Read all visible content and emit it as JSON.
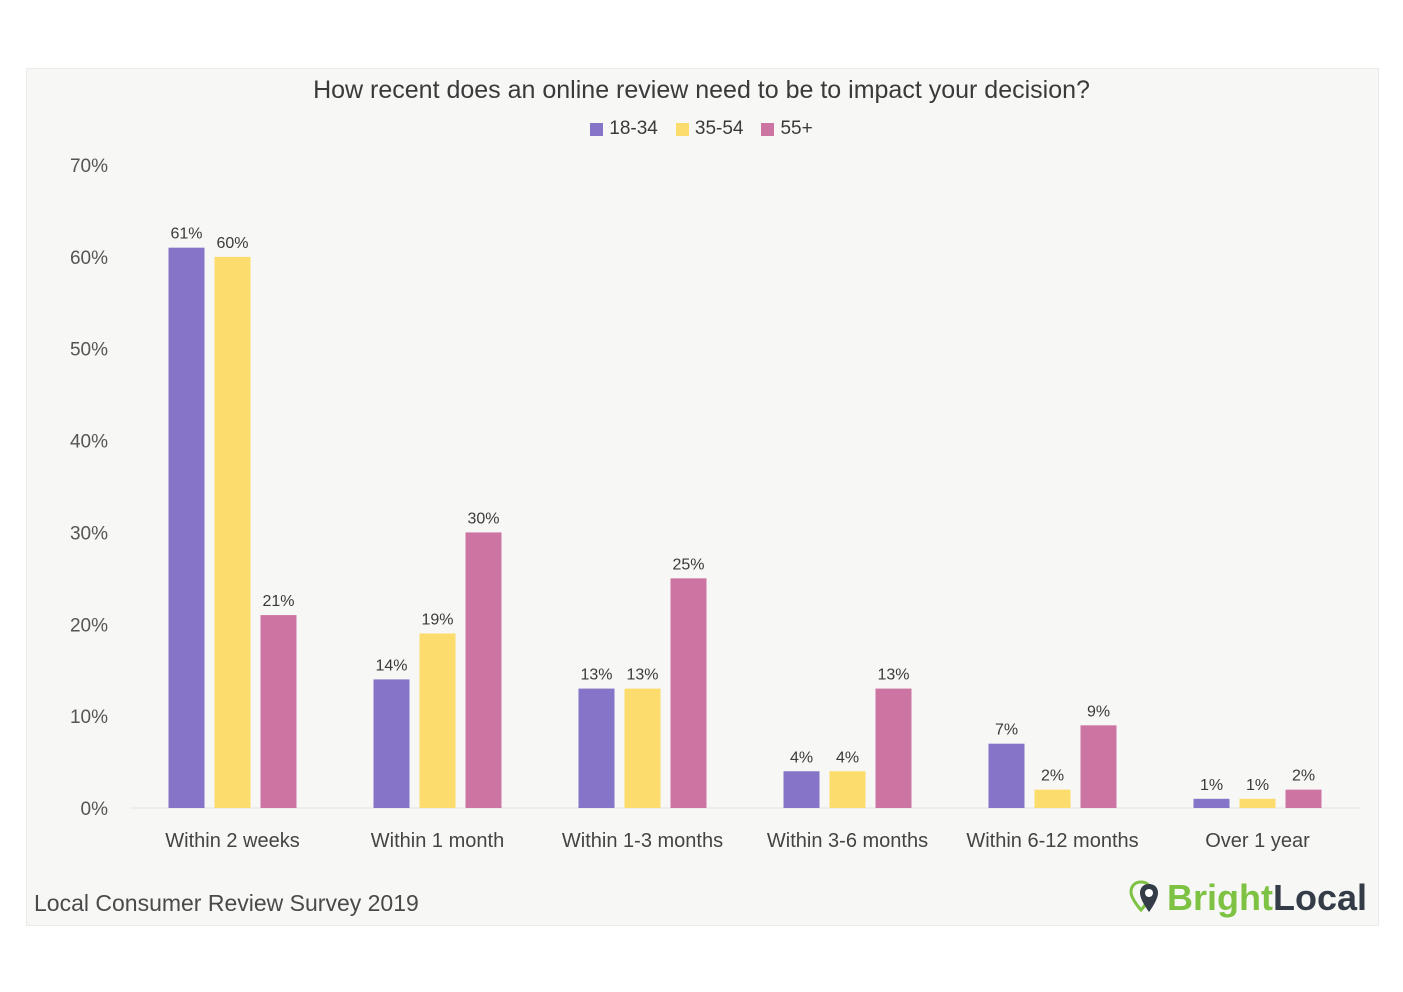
{
  "chart_data": {
    "type": "bar",
    "title": "How recent does an online review need to be to impact your decision?",
    "categories": [
      "Within 2 weeks",
      "Within 1 month",
      "Within 1-3 months",
      "Within 3-6 months",
      "Within 6-12 months",
      "Over 1 year"
    ],
    "series": [
      {
        "name": "18-34",
        "color": "#8574c7",
        "values": [
          61,
          14,
          13,
          4,
          7,
          1
        ],
        "labels": [
          "61%",
          "14%",
          "13%",
          "4%",
          "7%",
          "1%"
        ]
      },
      {
        "name": "35-54",
        "color": "#fcdc6c",
        "values": [
          60,
          19,
          13,
          4,
          2,
          1
        ],
        "labels": [
          "60%",
          "19%",
          "13%",
          "4%",
          "2%",
          "1%"
        ]
      },
      {
        "name": "55+",
        "color": "#cc74a2",
        "values": [
          21,
          30,
          25,
          13,
          9,
          2
        ],
        "labels": [
          "21%",
          "30%",
          "25%",
          "13%",
          "9%",
          "2%"
        ]
      }
    ],
    "ylim": [
      0,
      70
    ],
    "yticks": [
      "0%",
      "10%",
      "20%",
      "30%",
      "40%",
      "50%",
      "60%",
      "70%"
    ],
    "xlabel": "",
    "ylabel": "",
    "grid": false,
    "legend": "top-center"
  },
  "footer": {
    "source": "Local Consumer Review Survey 2019",
    "brand_part1": "Bright",
    "brand_part2": "Local"
  }
}
